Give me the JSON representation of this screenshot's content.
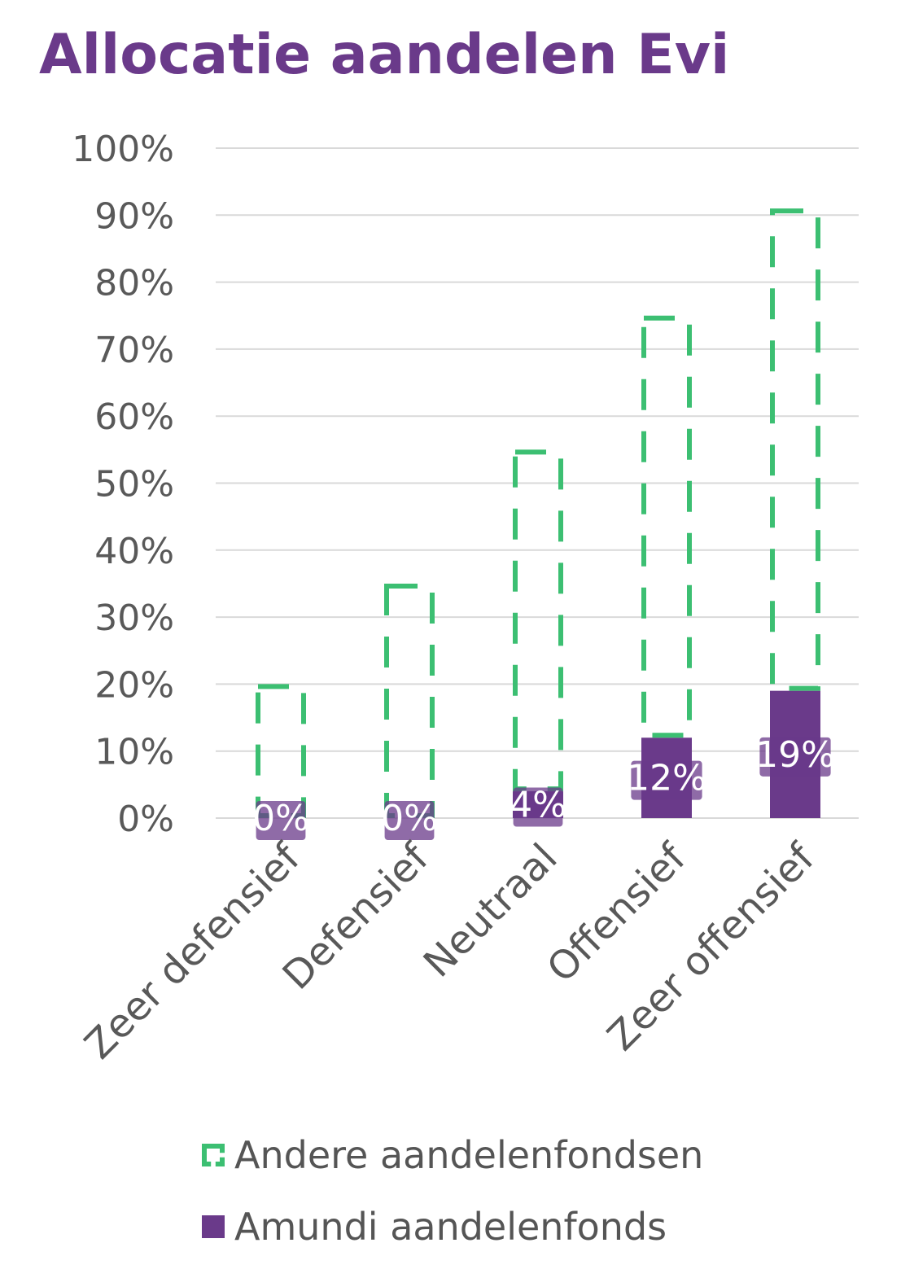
{
  "chart_data": {
    "type": "bar",
    "title": "Allocatie aandelen Evi",
    "categories": [
      "Zeer defensief",
      "Defensief",
      "Neutraal",
      "Offensief",
      "Zeer offensief"
    ],
    "series": [
      {
        "name": "Amundi aandelenfonds",
        "values": [
          0,
          0,
          4,
          12,
          19
        ],
        "labels": [
          "0%",
          "0%",
          "4%",
          "12%",
          "19%"
        ],
        "color": "#6a3a8a",
        "style": "solid"
      },
      {
        "name": "Andere aandelenfondsen",
        "values": [
          20,
          35,
          51,
          63,
          72
        ],
        "color": "#3cbf72",
        "style": "dashed-outline"
      }
    ],
    "stacked": true,
    "ylim": [
      0,
      100
    ],
    "yticks": [
      "0%",
      "10%",
      "20%",
      "30%",
      "40%",
      "50%",
      "60%",
      "70%",
      "80%",
      "90%",
      "100%"
    ],
    "xlabel": "",
    "ylabel": "",
    "grid": true,
    "legend_position": "bottom"
  },
  "legend": {
    "other": "Andere aandelenfondsen",
    "amundi": "Amundi aandelenfonds"
  }
}
